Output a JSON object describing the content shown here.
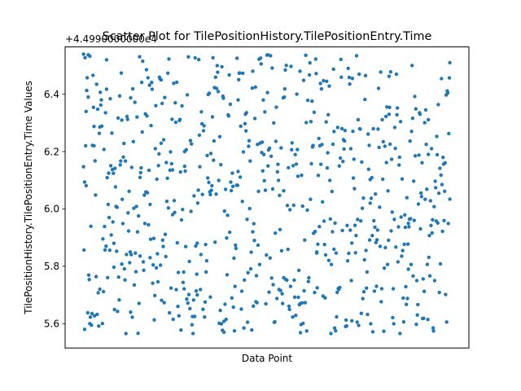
{
  "chart_data": {
    "type": "scatter",
    "title": "Scatter Plot for TilePositionHistory.TilePositionEntry.Time",
    "xlabel": "Data Point",
    "ylabel": "TilePositionHistory.TilePositionEntry.Time Values",
    "offset_label": "+4.4990000000e4",
    "ylim": [
      5.515,
      6.565
    ],
    "yticks": [
      5.6,
      5.8,
      6.0,
      6.2,
      6.4
    ],
    "ytick_labels": [
      "5.6",
      "5.8",
      "6.0",
      "6.2",
      "6.4"
    ],
    "x_ticks_shown": false,
    "grid": false,
    "legend": false,
    "point_color": "#1f77b4",
    "point_count": 700,
    "series": [
      {
        "values_note": "",
        "x_range": [
          0,
          699
        ],
        "y_range": [
          5.565,
          6.54
        ],
        "sample": [
          [
            0,
            6.54
          ],
          [
            2,
            5.58
          ],
          [
            5,
            6.34
          ],
          [
            9,
            6.39
          ],
          [
            12,
            5.6
          ],
          [
            20,
            6.22
          ],
          [
            31,
            5.72
          ],
          [
            44,
            6.52
          ],
          [
            58,
            5.88
          ],
          [
            73,
            6.31
          ],
          [
            90,
            5.64
          ],
          [
            108,
            6.11
          ],
          [
            127,
            5.83
          ],
          [
            148,
            6.45
          ],
          [
            170,
            5.98
          ],
          [
            193,
            6.2
          ],
          [
            217,
            5.7
          ],
          [
            242,
            6.05
          ],
          [
            268,
            5.57
          ],
          [
            295,
            6.38
          ],
          [
            323,
            5.92
          ],
          [
            352,
            6.15
          ],
          [
            382,
            5.76
          ],
          [
            413,
            6.48
          ],
          [
            445,
            5.85
          ],
          [
            478,
            6.27
          ],
          [
            512,
            5.61
          ],
          [
            547,
            6.02
          ],
          [
            583,
            6.33
          ],
          [
            620,
            5.79
          ],
          [
            658,
            6.19
          ],
          [
            699,
            6.51
          ]
        ]
      }
    ]
  }
}
